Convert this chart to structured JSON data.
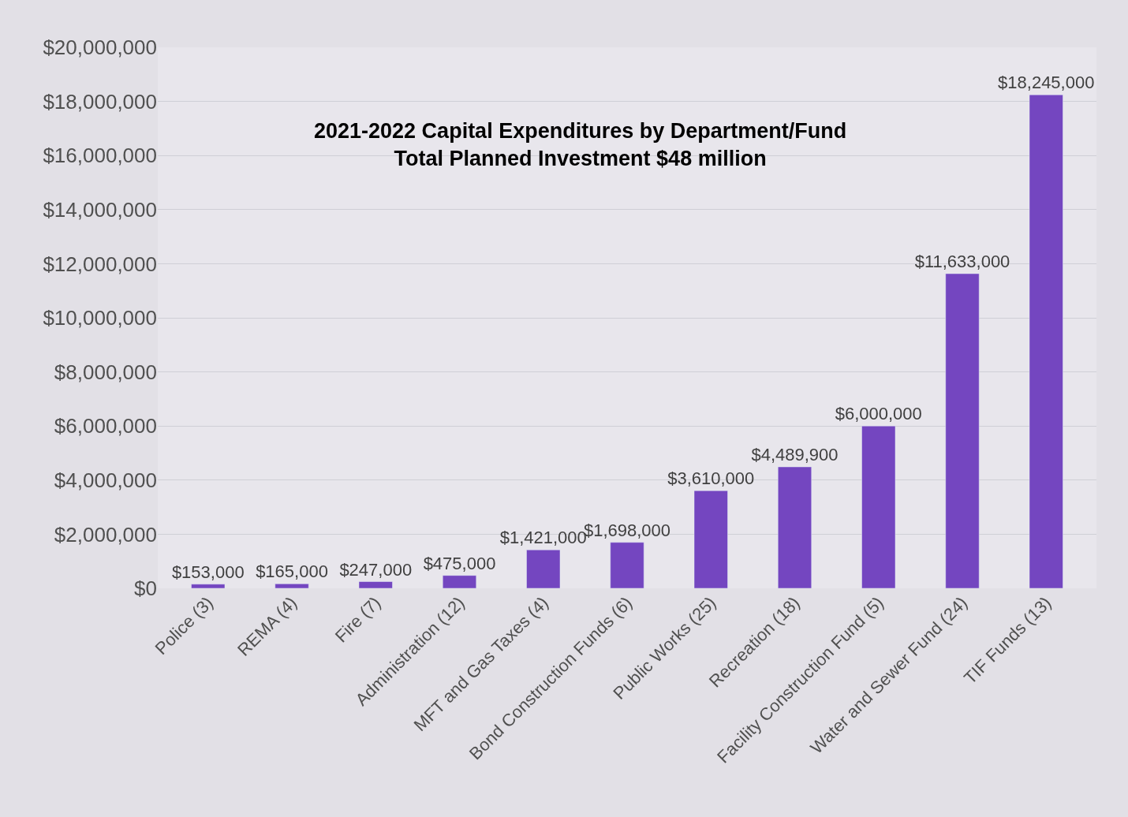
{
  "chart_data": {
    "type": "bar",
    "title": "2021-2022 Capital Expenditures by Department/Fund",
    "subtitle": "Total Planned Investment $48 million",
    "categories": [
      "Police (3)",
      "REMA (4)",
      "Fire (7)",
      "Administration (12)",
      "MFT and Gas Taxes (4)",
      "Bond Construction Funds (6)",
      "Public Works (25)",
      "Recreation (18)",
      "Facility Construction Fund (5)",
      "Water and Sewer Fund (24)",
      "TIF Funds (13)"
    ],
    "values": [
      153000,
      165000,
      247000,
      475000,
      1421000,
      1698000,
      3610000,
      4489900,
      6000000,
      11633000,
      18245000
    ],
    "value_labels": [
      "$153,000",
      "$165,000",
      "$247,000",
      "$475,000",
      "$1,421,000",
      "$1,698,000",
      "$3,610,000",
      "$4,489,900",
      "$6,000,000",
      "$11,633,000",
      "$18,245,000"
    ],
    "color": "#7446c0",
    "ylim": [
      0,
      20000000
    ],
    "yticks": [
      {
        "value": 0,
        "label": "$0"
      },
      {
        "value": 2000000,
        "label": "$2,000,000"
      },
      {
        "value": 4000000,
        "label": "$4,000,000"
      },
      {
        "value": 6000000,
        "label": "$6,000,000"
      },
      {
        "value": 8000000,
        "label": "$8,000,000"
      },
      {
        "value": 10000000,
        "label": "$10,000,000"
      },
      {
        "value": 12000000,
        "label": "$12,000,000"
      },
      {
        "value": 14000000,
        "label": "$14,000,000"
      },
      {
        "value": 16000000,
        "label": "$16,000,000"
      },
      {
        "value": 18000000,
        "label": "$18,000,000"
      },
      {
        "value": 20000000,
        "label": "$20,000,000"
      }
    ],
    "grid": "y"
  }
}
